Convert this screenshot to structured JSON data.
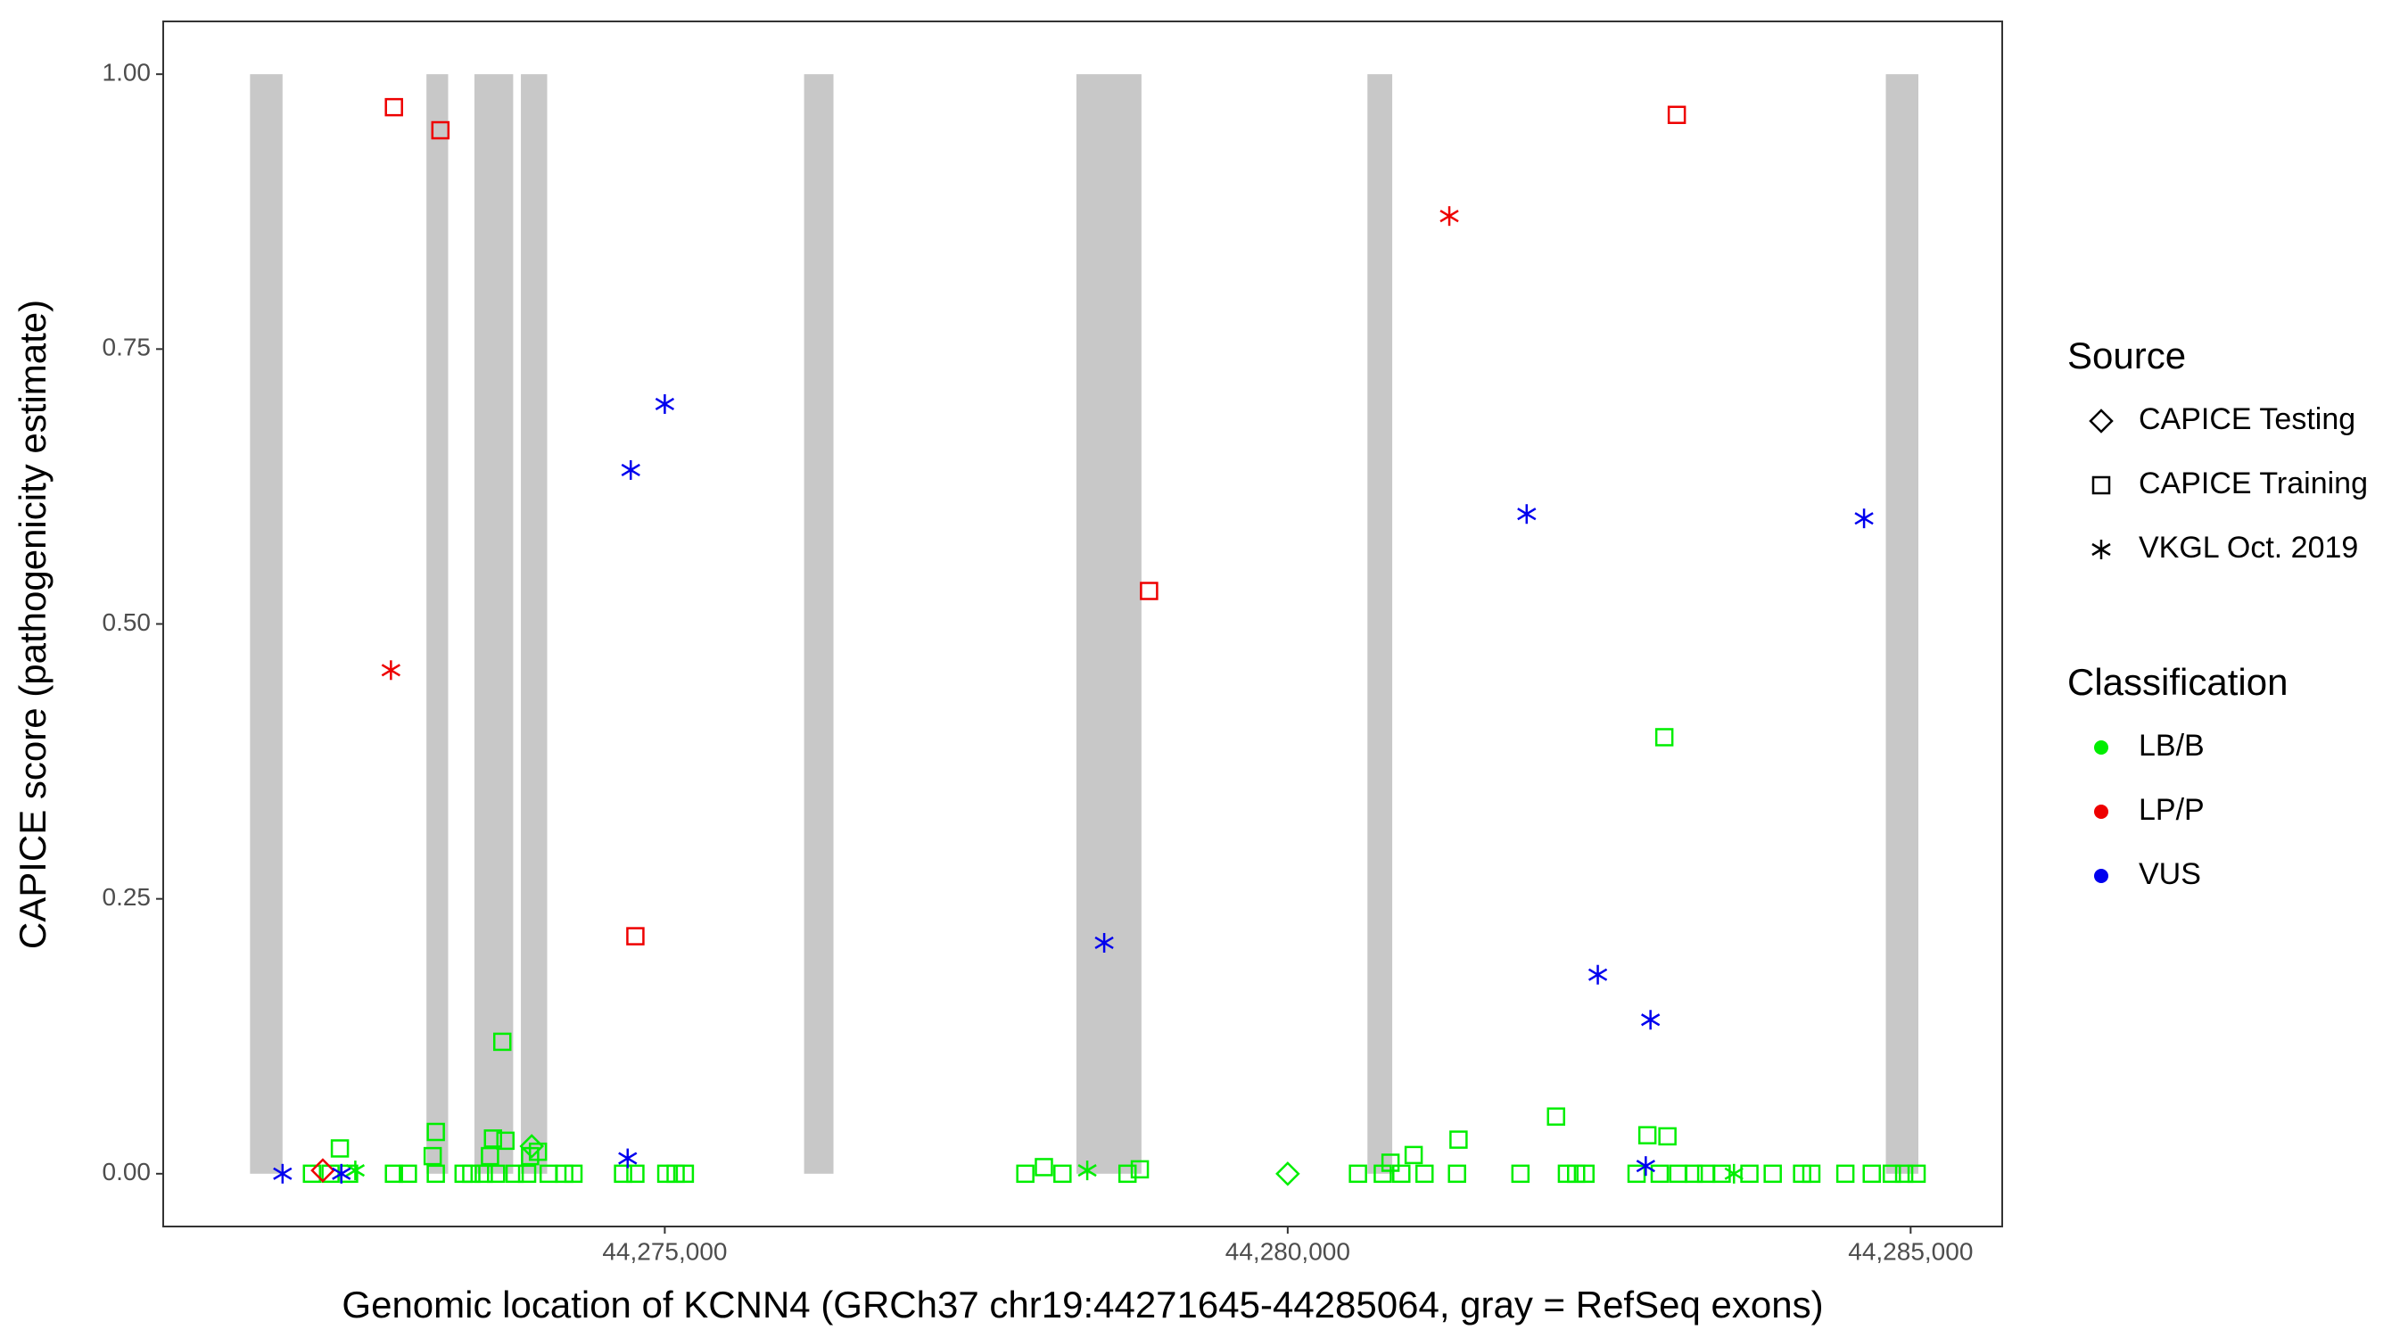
{
  "chart_data": {
    "type": "scatter",
    "xlabel": "Genomic location of KCNN4 (GRCh37 chr19:44271645-44285064, gray = RefSeq exons)",
    "ylabel": "CAPICE score (pathogenicity estimate)",
    "xlim": [
      44270974,
      44285735
    ],
    "ylim": [
      -0.048,
      1.048
    ],
    "xticks": [
      {
        "value": 44275000,
        "label": "44,275,000"
      },
      {
        "value": 44280000,
        "label": "44,280,000"
      },
      {
        "value": 44285000,
        "label": "44,285,000"
      }
    ],
    "yticks": [
      {
        "value": 0,
        "label": "0.00"
      },
      {
        "value": 0.25,
        "label": "0.25"
      },
      {
        "value": 0.5,
        "label": "0.50"
      },
      {
        "value": 0.75,
        "label": "0.75"
      },
      {
        "value": 1,
        "label": "1.00"
      }
    ],
    "exon_color": "#c8c8c8",
    "exons": [
      [
        44271671,
        44271932
      ],
      [
        44273087,
        44273261
      ],
      [
        44273472,
        44273783
      ],
      [
        44273845,
        44274056
      ],
      [
        44276118,
        44276354
      ],
      [
        44278304,
        44278826
      ],
      [
        44280640,
        44280839
      ],
      [
        44284801,
        44285062
      ]
    ],
    "legends": [
      {
        "title": "Source",
        "items": [
          {
            "name": "CAPICE Testing",
            "shape": "diamond"
          },
          {
            "name": "CAPICE Training",
            "shape": "square"
          },
          {
            "name": "VKGL Oct. 2019",
            "shape": "asterisk"
          }
        ]
      },
      {
        "title": "Classification",
        "items": [
          {
            "name": "LB/B",
            "color": "#00ee00"
          },
          {
            "name": "LP/P",
            "color": "#ee0000"
          },
          {
            "name": "VUS",
            "color": "#0000ee"
          }
        ]
      }
    ],
    "groups": [
      {
        "source": "CAPICE Training",
        "classification": "LB/B",
        "x": [
          44272168,
          44272317,
          44272466,
          44272826,
          44272938,
          44273162,
          44273385,
          44273447,
          44273547,
          44273646,
          44273795,
          44273895,
          44274068,
          44274193,
          44274267,
          44274665,
          44274764,
          44275012,
          44275087,
          44275161,
          44277894,
          44278192,
          44278714,
          44280564,
          44280763,
          44280912,
          44281098,
          44281359,
          44281868,
          44282241,
          44282315,
          44282390,
          44282800,
          44282986,
          44283135,
          44283259,
          44283359,
          44283483,
          44283706,
          44283893,
          44284129,
          44284203,
          44284476,
          44284688,
          44284849,
          44284948,
          44285048,
          44272392,
          44273162,
          44273137,
          44273696,
          44273621,
          44273721,
          44273597,
          44273919,
          44273982,
          44278043,
          44278813,
          44280825,
          44281011,
          44281371,
          44282154,
          44282887,
          44283048,
          44283023
        ],
        "values": [
          0,
          0,
          0,
          0,
          0,
          0,
          0,
          0,
          0,
          0,
          0,
          0,
          0,
          0,
          0,
          0,
          0,
          0,
          0,
          0,
          0,
          0,
          0,
          0,
          0,
          0,
          0,
          0,
          0,
          0,
          0,
          0,
          0,
          0,
          0,
          0,
          0,
          0,
          0,
          0,
          0,
          0,
          0,
          0,
          0,
          0,
          0,
          0.023,
          0.038,
          0.016,
          0.12,
          0.032,
          0.03,
          0.016,
          0.016,
          0.02,
          0.006,
          0.004,
          0.01,
          0.017,
          0.031,
          0.052,
          0.035,
          0.034,
          0.397
        ]
      },
      {
        "source": "CAPICE Testing",
        "classification": "LB/B",
        "x": [
          44273932,
          44280000
        ],
        "values": [
          0.025,
          0
        ]
      },
      {
        "source": "VKGL Oct. 2019",
        "classification": "LB/B",
        "x": [
          44272516,
          44278391,
          44283582
        ],
        "values": [
          0.003,
          0.003,
          0
        ]
      },
      {
        "source": "CAPICE Training",
        "classification": "LP/P",
        "x": [
          44272826,
          44273199,
          44274764,
          44278887,
          44283123
        ],
        "values": [
          0.97,
          0.949,
          0.216,
          0.53,
          0.963
        ]
      },
      {
        "source": "VKGL Oct. 2019",
        "classification": "LP/P",
        "x": [
          44272802,
          44281297
        ],
        "values": [
          0.458,
          0.871
        ]
      },
      {
        "source": "CAPICE Testing",
        "classification": "LP/P",
        "x": [
          44272255
        ],
        "values": [
          0.003
        ]
      },
      {
        "source": "VKGL Oct. 2019",
        "classification": "VUS",
        "x": [
          44271932,
          44272404,
          44274727,
          44275000,
          44274702,
          44278527,
          44281918,
          44282489,
          44282912,
          44282874,
          44284626
        ],
        "values": [
          0,
          0,
          0.64,
          0.7,
          0.014,
          0.21,
          0.6,
          0.181,
          0.14,
          0.007,
          0.596
        ]
      }
    ]
  }
}
